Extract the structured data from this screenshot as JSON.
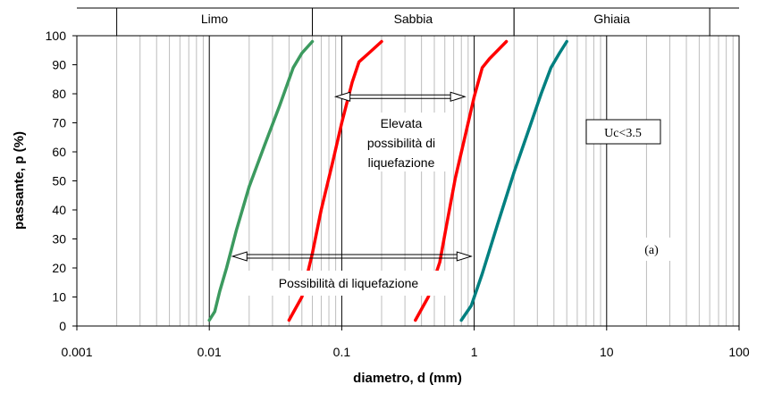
{
  "chart_data": {
    "type": "line",
    "xscale": "log",
    "xlim": [
      0.001,
      100
    ],
    "ylim": [
      0,
      100
    ],
    "xlabel": "diametro, d (mm)",
    "ylabel": "passante, p (%)",
    "xtick_labels": [
      "0.001",
      "0.01",
      "0.1",
      "1",
      "10",
      "100"
    ],
    "xtick_values": [
      0.001,
      0.01,
      0.1,
      1,
      10,
      100
    ],
    "ytick_values": [
      0,
      10,
      20,
      30,
      40,
      50,
      60,
      70,
      80,
      90,
      100
    ],
    "grid": true,
    "soil_bands": [
      {
        "label": "Limo",
        "from": 0.002,
        "to": 0.06
      },
      {
        "label": "Sabbia",
        "from": 0.06,
        "to": 2
      },
      {
        "label": "Ghiaia",
        "from": 2,
        "to": 60
      }
    ],
    "series": [
      {
        "color": "#3c9a5f",
        "x": [
          0.01,
          0.011,
          0.012,
          0.0135,
          0.016,
          0.02,
          0.026,
          0.034,
          0.043,
          0.05,
          0.06
        ],
        "y": [
          2,
          5,
          12,
          20,
          33,
          48,
          62,
          76,
          89,
          94,
          98
        ]
      },
      {
        "color": "#ff0000",
        "x": [
          0.04,
          0.05,
          0.06,
          0.07,
          0.085,
          0.1,
          0.12,
          0.135,
          0.16,
          0.2
        ],
        "y": [
          2,
          10,
          25,
          40,
          56,
          70,
          84,
          91,
          94,
          98
        ]
      },
      {
        "color": "#ff0000",
        "x": [
          0.36,
          0.45,
          0.55,
          0.62,
          0.72,
          0.85,
          1.0,
          1.15,
          1.3,
          1.75
        ],
        "y": [
          2,
          10,
          22,
          35,
          51,
          65,
          79,
          89,
          92,
          98
        ]
      },
      {
        "color": "#008080",
        "x": [
          0.8,
          0.95,
          1.15,
          1.5,
          2.0,
          2.6,
          3.2,
          3.8,
          4.4,
          5.0
        ],
        "y": [
          2,
          7,
          18,
          35,
          53,
          68,
          80,
          89,
          94,
          98
        ]
      }
    ],
    "annotations": {
      "top_arrow_text": [
        "Elevata",
        "possibilità di",
        "liquefazione"
      ],
      "bottom_arrow_text": "Possibilità di liquefazione",
      "uc_label": "Uc<3.5",
      "panel_label": "(a)"
    },
    "annotation_arrows": [
      {
        "from_x": 0.09,
        "to_x": 0.85,
        "y": 79
      },
      {
        "from_x": 0.015,
        "to_x": 0.95,
        "y": 24
      }
    ]
  }
}
